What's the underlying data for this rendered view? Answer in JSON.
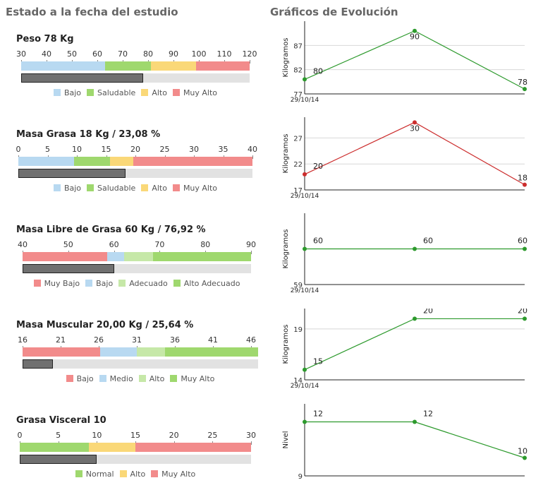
{
  "headers": {
    "left": "Estado a la fecha del estudio",
    "right": "Gráficos de Evolución"
  },
  "colors": {
    "muy_bajo": "#f28b8b",
    "bajo": "#b8d9f1",
    "saludable": "#9fd86e",
    "alto": "#fad878",
    "muy_alto": "#f28b8b",
    "adecuado": "#c6e8a8",
    "bar_bg": "#e2e2e2",
    "value": "#707070",
    "green_line": "#2d9a2d",
    "red_line": "#cc2d2d"
  },
  "sections": [
    {
      "title": "Peso 78 Kg",
      "ticks": [
        "30",
        "40",
        "50",
        "60",
        "70",
        "80",
        "90",
        "100",
        "110",
        "120"
      ],
      "value": 78,
      "segments": [
        {
          "from": 30,
          "to": 63,
          "color": "#b8d9f1"
        },
        {
          "from": 63,
          "to": 81,
          "color": "#9fd86e"
        },
        {
          "from": 81,
          "to": 99,
          "color": "#fad878"
        },
        {
          "from": 99,
          "to": 120,
          "color": "#f28b8b"
        }
      ],
      "legend": [
        {
          "label": "Bajo",
          "color": "#b8d9f1"
        },
        {
          "label": "Saludable",
          "color": "#9fd86e"
        },
        {
          "label": "Alto",
          "color": "#fad878"
        },
        {
          "label": "Muy Alto",
          "color": "#f28b8b"
        }
      ]
    },
    {
      "title": "Masa Grasa 18 Kg / 23,08 %",
      "ticks": [
        "0",
        "5",
        "10",
        "15",
        "20",
        "25",
        "30",
        "35",
        "40"
      ],
      "value": 18.3,
      "segments": [
        {
          "from": 0,
          "to": 9.5,
          "color": "#b8d9f1"
        },
        {
          "from": 9.5,
          "to": 15.7,
          "color": "#9fd86e"
        },
        {
          "from": 15.7,
          "to": 19.6,
          "color": "#fad878"
        },
        {
          "from": 19.6,
          "to": 40,
          "color": "#f28b8b"
        }
      ],
      "legend": [
        {
          "label": "Bajo",
          "color": "#b8d9f1"
        },
        {
          "label": "Saludable",
          "color": "#9fd86e"
        },
        {
          "label": "Alto",
          "color": "#fad878"
        },
        {
          "label": "Muy Alto",
          "color": "#f28b8b"
        }
      ]
    },
    {
      "title": "Masa Libre de Grasa 60 Kg / 76,92 %",
      "ticks": [
        "40",
        "50",
        "60",
        "70",
        "80",
        "90"
      ],
      "value": 60,
      "segments": [
        {
          "from": 40,
          "to": 58.5,
          "color": "#f28b8b"
        },
        {
          "from": 58.5,
          "to": 62.2,
          "color": "#b8d9f1"
        },
        {
          "from": 62.2,
          "to": 68.6,
          "color": "#c6e8a8"
        },
        {
          "from": 68.6,
          "to": 90,
          "color": "#9fd86e"
        }
      ],
      "legend": [
        {
          "label": "Muy Bajo",
          "color": "#f28b8b"
        },
        {
          "label": "Bajo",
          "color": "#b8d9f1"
        },
        {
          "label": "Adecuado",
          "color": "#c6e8a8"
        },
        {
          "label": "Alto Adecuado",
          "color": "#9fd86e"
        }
      ]
    },
    {
      "title": "Masa Muscular 20,00 Kg / 25,64 %",
      "ticks": [
        "16",
        "21",
        "26",
        "31",
        "36",
        "41",
        "46"
      ],
      "value": 20,
      "segments": [
        {
          "from": 16,
          "to": 26.2,
          "color": "#f28b8b"
        },
        {
          "from": 26.2,
          "to": 31,
          "color": "#b8d9f1"
        },
        {
          "from": 31,
          "to": 34.7,
          "color": "#c6e8a8"
        },
        {
          "from": 34.7,
          "to": 47.4,
          "color": "#9fd86e"
        }
      ],
      "legend": [
        {
          "label": "Bajo",
          "color": "#f28b8b"
        },
        {
          "label": "Medio",
          "color": "#b8d9f1"
        },
        {
          "label": "Alto",
          "color": "#c6e8a8"
        },
        {
          "label": "Muy Alto",
          "color": "#9fd86e"
        }
      ]
    },
    {
      "title": "Grasa Visceral 10",
      "ticks": [
        "0",
        "5",
        "10",
        "15",
        "20",
        "25",
        "30"
      ],
      "value": 10,
      "segments": [
        {
          "from": 0,
          "to": 9,
          "color": "#9fd86e"
        },
        {
          "from": 9,
          "to": 15,
          "color": "#fad878"
        },
        {
          "from": 15,
          "to": 30,
          "color": "#f28b8b"
        }
      ],
      "legend": [
        {
          "label": "Normal",
          "color": "#9fd86e"
        },
        {
          "label": "Alto",
          "color": "#fad878"
        },
        {
          "label": "Muy Alto",
          "color": "#f28b8b"
        }
      ]
    }
  ],
  "chart_data": [
    {
      "type": "line",
      "title": "Peso",
      "ylabel": "Kilogramos",
      "xlabel": "29/10/14",
      "yticks": [
        77,
        82,
        87
      ],
      "ylim": [
        77,
        92
      ],
      "values": [
        80,
        90,
        78
      ],
      "labels": [
        "80",
        "90",
        "78"
      ],
      "color": "#2d9a2d"
    },
    {
      "type": "line",
      "title": "Masa Grasa",
      "ylabel": "Kilogramos",
      "xlabel": "29/10/14",
      "yticks": [
        17,
        22,
        27
      ],
      "ylim": [
        17,
        31
      ],
      "values": [
        20,
        30,
        18
      ],
      "labels": [
        "20",
        "30",
        "18"
      ],
      "color": "#cc2d2d"
    },
    {
      "type": "line",
      "title": "Masa Libre de Grasa",
      "ylabel": "Kilogramos",
      "xlabel": "29/10/14",
      "yticks": [
        59
      ],
      "ylim": [
        59,
        61
      ],
      "values": [
        60,
        60,
        60
      ],
      "labels": [
        "60",
        "60",
        "60"
      ],
      "color": "#2d9a2d"
    },
    {
      "type": "line",
      "title": "Masa Muscular",
      "ylabel": "Kilogramos",
      "xlabel": "29/10/14",
      "yticks": [
        14,
        19
      ],
      "ylim": [
        14,
        21
      ],
      "values": [
        15,
        20,
        20
      ],
      "labels": [
        "15",
        "20",
        "20"
      ],
      "color": "#2d9a2d"
    },
    {
      "type": "line",
      "title": "Grasa Visceral",
      "ylabel": "Nivel",
      "xlabel": "",
      "yticks": [
        9
      ],
      "ylim": [
        9,
        13
      ],
      "values": [
        12,
        12,
        10
      ],
      "labels": [
        "12",
        "12",
        "10"
      ],
      "color": "#2d9a2d"
    }
  ]
}
